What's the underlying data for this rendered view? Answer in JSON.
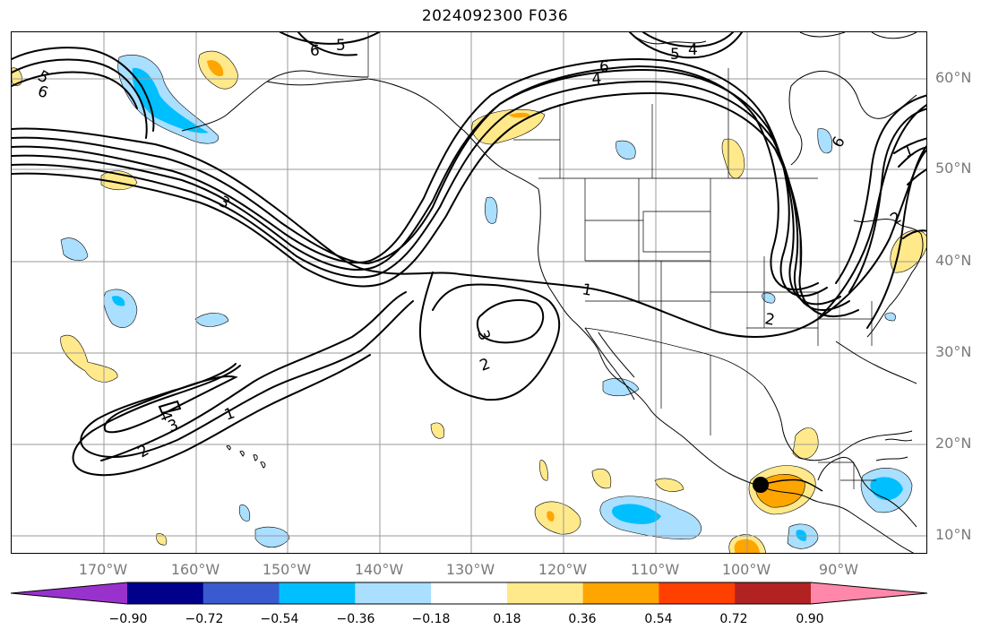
{
  "title": "2024092300 F036",
  "lat_labels": [
    "60°N",
    "50°N",
    "40°N",
    "30°N",
    "20°N",
    "10°N"
  ],
  "lon_labels": [
    "170°W",
    "160°W",
    "150°W",
    "140°W",
    "130°W",
    "120°W",
    "110°W",
    "100°W",
    "90°W"
  ],
  "contour_labels": [
    "1",
    "1",
    "1",
    "2",
    "2",
    "2",
    "2",
    "3",
    "3",
    "3",
    "4",
    "4",
    "4",
    "5",
    "5",
    "5",
    "6",
    "6",
    "6",
    "6"
  ],
  "colorbar": {
    "ticks": [
      "−0.90",
      "−0.72",
      "−0.54",
      "−0.36",
      "−0.18",
      "0.18",
      "0.36",
      "0.54",
      "0.72",
      "0.90"
    ],
    "colors": [
      "#9932cc",
      "#00008b",
      "#3a5bcf",
      "#00bfff",
      "#aadfff",
      "#ffffff",
      "#ffe98a",
      "#ffa500",
      "#ff4000",
      "#b22222",
      "#ff88aa"
    ]
  },
  "colors": {
    "light_blue": "#aadfff",
    "blue": "#00bfff",
    "light_yellow": "#ffe98a",
    "orange": "#ffa500",
    "red": "#ff4000"
  },
  "storm_marker": "black-dot-storm-center"
}
